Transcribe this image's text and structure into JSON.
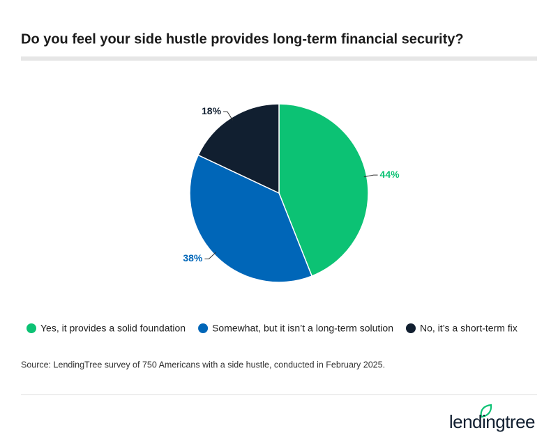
{
  "chart_data": {
    "type": "pie",
    "title": "Do you feel your side hustle provides long-term financial security?",
    "categories": [
      "Yes, it provides a solid foundation",
      "Somewhat, but it isn’t a long-term solution",
      "No, it’s a short-term fix"
    ],
    "values": [
      44,
      38,
      18
    ],
    "value_labels": [
      "44%",
      "38%",
      "18%"
    ],
    "colors": [
      "#0cc274",
      "#0066b8",
      "#111f30"
    ],
    "source": "Source: LendingTree survey of 750 Americans with a side hustle, conducted in February 2025."
  },
  "logo": "lendingtree"
}
